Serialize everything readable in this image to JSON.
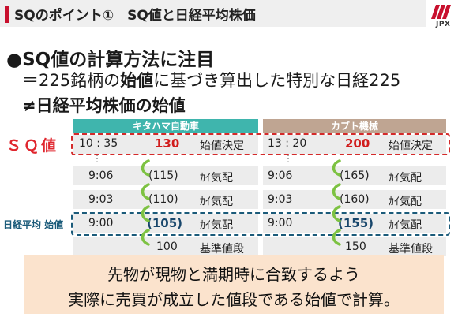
{
  "header": {
    "title": "SQのポイント①　SQ値と日経平均株価",
    "logo_text": "JPX"
  },
  "headings": {
    "bullet": "●",
    "h1": "SQ値の計算方法に注目",
    "h2_prefix": "＝225銘柄の",
    "h2_bold": "始値",
    "h2_suffix": "に基づき算出した特別な日経225",
    "h3": "≠日経平均株価の始値"
  },
  "table": {
    "left_header": "キタハマ自動車",
    "right_header": "カブト機械",
    "label_sq": "ＳＱ値",
    "label_nikkei": "日経平均 始値",
    "sq_row": {
      "left_time": "10 : 35",
      "left_price": "130",
      "left_note": "始値決定",
      "right_time": "13 : 20",
      "right_price": "200",
      "right_note": "始値決定"
    },
    "ellipsis": "⋮",
    "rows": [
      {
        "left_time": "9:06",
        "left_price": "(115)",
        "left_note": "ｶｲ気配",
        "right_time": "9:06",
        "right_price": "(165)",
        "right_note": "ｶｲ気配"
      },
      {
        "left_time": "9:03",
        "left_price": "(110)",
        "left_note": "ｶｲ気配",
        "right_time": "9:03",
        "right_price": "(160)",
        "right_note": "ｶｲ気配"
      },
      {
        "left_time": "9:00",
        "left_price": "(105)",
        "left_note": "ｶｲ気配",
        "right_time": "9:00",
        "right_price": "(155)",
        "right_note": "ｶｲ気配"
      }
    ],
    "base_row": {
      "left_price": "100",
      "left_note": "基準値段",
      "right_price": "150",
      "right_note": "基準値段"
    }
  },
  "bottom": {
    "line1": "先物が現物と満期時に合致するよう",
    "line2": "実際に売買が成立した値段である始値で計算。"
  },
  "colors": {
    "accent_red": "#c8102e",
    "teal": "#3fb5ad",
    "tan": "#bfa592",
    "navy": "#1b5b7a",
    "peach": "#fbe3cd"
  }
}
